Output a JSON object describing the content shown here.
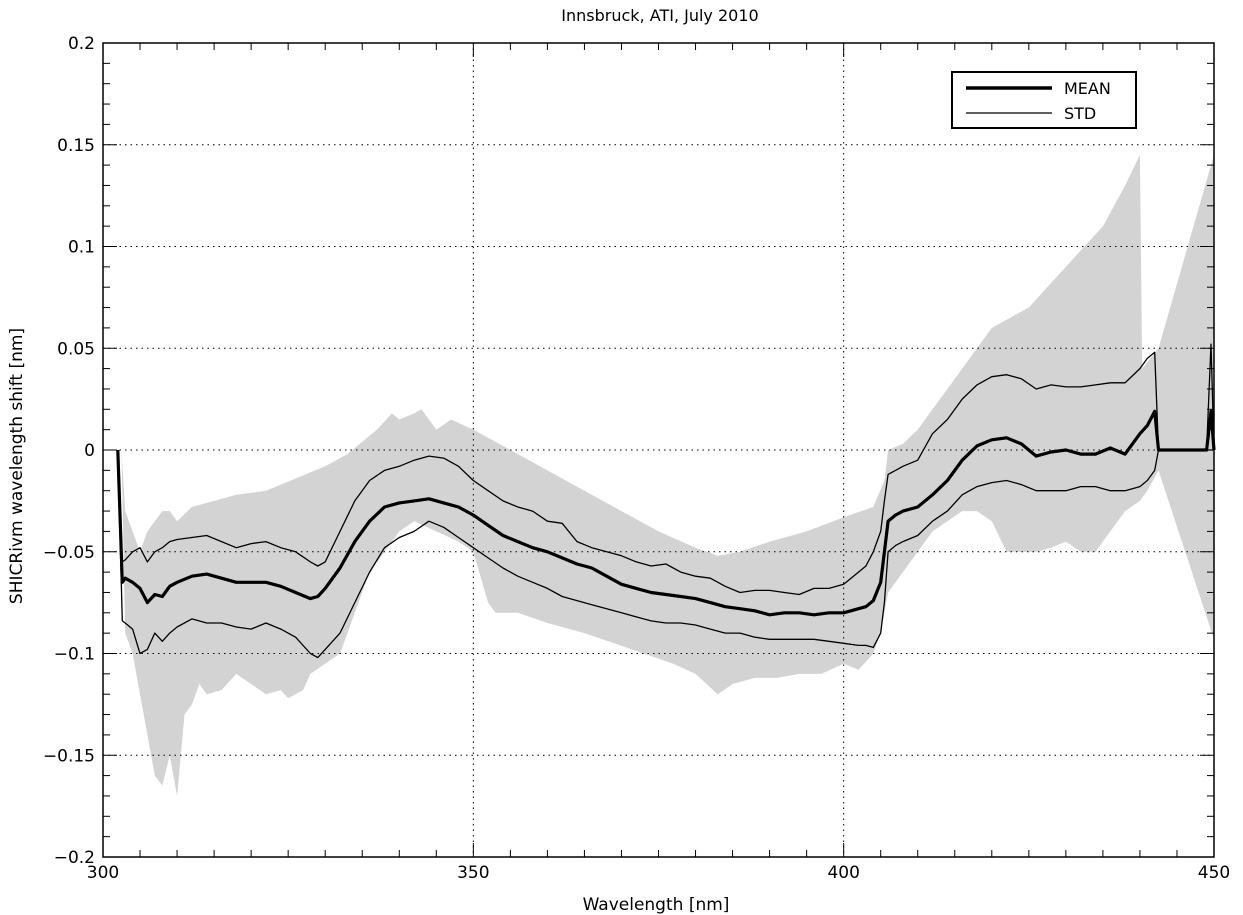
{
  "chart_data": {
    "type": "line",
    "title": "Innsbruck, ATI, July 2010",
    "xlabel": "Wavelength [nm]",
    "ylabel": "SHICRivm wavelength shift [nm]",
    "xlim": [
      300,
      450
    ],
    "ylim": [
      -0.2,
      0.2
    ],
    "xticks": [
      300,
      350,
      400,
      450
    ],
    "yticks": [
      -0.2,
      -0.15,
      -0.1,
      -0.05,
      0,
      0.05,
      0.1,
      0.15,
      0.2
    ],
    "xtick_labels": [
      "300",
      "350",
      "400",
      "450"
    ],
    "ytick_labels": [
      "−0.2",
      "−0.15",
      "−0.1",
      "−0.05",
      "0",
      "0.05",
      "0.1",
      "0.15",
      "0.2"
    ],
    "grid": true,
    "legend_position": "top-right",
    "legend": [
      "MEAN",
      "STD"
    ],
    "colors": {
      "range_fill": "#d3d3d3",
      "lines": "#000000",
      "grid": "#000000"
    },
    "range_band": {
      "upper": [
        [
          302.5,
          0
        ],
        [
          303,
          -0.03
        ],
        [
          304,
          -0.04
        ],
        [
          305,
          -0.05
        ],
        [
          306,
          -0.04
        ],
        [
          307,
          -0.035
        ],
        [
          308,
          -0.03
        ],
        [
          309,
          -0.03
        ],
        [
          310,
          -0.035
        ],
        [
          312,
          -0.028
        ],
        [
          315,
          -0.025
        ],
        [
          318,
          -0.022
        ],
        [
          322,
          -0.02
        ],
        [
          326,
          -0.014
        ],
        [
          330,
          -0.008
        ],
        [
          333,
          -0.002
        ],
        [
          335,
          0.004
        ],
        [
          337,
          0.01
        ],
        [
          339,
          0.018
        ],
        [
          340,
          0.015
        ],
        [
          342,
          0.018
        ],
        [
          343,
          0.02
        ],
        [
          345,
          0.01
        ],
        [
          347,
          0.015
        ],
        [
          350,
          0.01
        ],
        [
          355,
          0.0
        ],
        [
          360,
          -0.01
        ],
        [
          365,
          -0.02
        ],
        [
          370,
          -0.03
        ],
        [
          375,
          -0.04
        ],
        [
          380,
          -0.048
        ],
        [
          383,
          -0.052
        ],
        [
          386,
          -0.05
        ],
        [
          390,
          -0.045
        ],
        [
          395,
          -0.04
        ],
        [
          400,
          -0.033
        ],
        [
          404,
          -0.028
        ],
        [
          405.5,
          -0.015
        ],
        [
          406,
          0.0
        ],
        [
          408,
          0.003
        ],
        [
          410,
          0.01
        ],
        [
          412,
          0.02
        ],
        [
          414,
          0.03
        ],
        [
          416,
          0.04
        ],
        [
          418,
          0.05
        ],
        [
          420,
          0.06
        ],
        [
          425,
          0.07
        ],
        [
          430,
          0.09
        ],
        [
          435,
          0.11
        ],
        [
          438,
          0.13
        ],
        [
          440,
          0.145
        ],
        [
          440.3,
          0.04
        ],
        [
          442.5,
          0.05
        ],
        [
          450,
          0.145
        ]
      ],
      "lower": [
        [
          450,
          -0.093
        ],
        [
          442.5,
          -0.01
        ],
        [
          441,
          -0.02
        ],
        [
          440,
          -0.025
        ],
        [
          438,
          -0.03
        ],
        [
          436,
          -0.04
        ],
        [
          434,
          -0.05
        ],
        [
          432,
          -0.05
        ],
        [
          430,
          -0.045
        ],
        [
          428,
          -0.048
        ],
        [
          426,
          -0.05
        ],
        [
          424,
          -0.05
        ],
        [
          422,
          -0.05
        ],
        [
          420,
          -0.035
        ],
        [
          418,
          -0.03
        ],
        [
          416,
          -0.03
        ],
        [
          414,
          -0.035
        ],
        [
          412,
          -0.04
        ],
        [
          410,
          -0.05
        ],
        [
          408,
          -0.06
        ],
        [
          406,
          -0.07
        ],
        [
          405,
          -0.09
        ],
        [
          404,
          -0.1
        ],
        [
          402,
          -0.108
        ],
        [
          400,
          -0.105
        ],
        [
          397,
          -0.11
        ],
        [
          394,
          -0.11
        ],
        [
          391,
          -0.112
        ],
        [
          388,
          -0.112
        ],
        [
          385,
          -0.115
        ],
        [
          383,
          -0.12
        ],
        [
          380,
          -0.11
        ],
        [
          377,
          -0.105
        ],
        [
          373,
          -0.1
        ],
        [
          369,
          -0.095
        ],
        [
          365,
          -0.09
        ],
        [
          360,
          -0.085
        ],
        [
          356,
          -0.08
        ],
        [
          353,
          -0.08
        ],
        [
          352,
          -0.075
        ],
        [
          350,
          -0.05
        ],
        [
          348,
          -0.045
        ],
        [
          345,
          -0.04
        ],
        [
          342,
          -0.035
        ],
        [
          340,
          -0.04
        ],
        [
          338,
          -0.05
        ],
        [
          336,
          -0.06
        ],
        [
          334,
          -0.08
        ],
        [
          332,
          -0.1
        ],
        [
          330,
          -0.105
        ],
        [
          328,
          -0.11
        ],
        [
          327,
          -0.118
        ],
        [
          325,
          -0.122
        ],
        [
          324,
          -0.118
        ],
        [
          322,
          -0.12
        ],
        [
          320,
          -0.115
        ],
        [
          318,
          -0.11
        ],
        [
          316,
          -0.118
        ],
        [
          314,
          -0.12
        ],
        [
          313,
          -0.115
        ],
        [
          312,
          -0.125
        ],
        [
          311,
          -0.13
        ],
        [
          310,
          -0.17
        ],
        [
          309,
          -0.15
        ],
        [
          308,
          -0.165
        ],
        [
          307,
          -0.16
        ],
        [
          306,
          -0.14
        ],
        [
          305,
          -0.12
        ],
        [
          304,
          -0.1
        ],
        [
          303,
          -0.09
        ],
        [
          302.5,
          0
        ]
      ]
    },
    "series": [
      {
        "name": "MEAN",
        "x": [
          302,
          302.6,
          303,
          304,
          305,
          306,
          307,
          308,
          309,
          310,
          312,
          314,
          316,
          318,
          320,
          322,
          324,
          326,
          328,
          329,
          330,
          332,
          334,
          336,
          338,
          340,
          342,
          344,
          346,
          348,
          350,
          352,
          354,
          356,
          358,
          360,
          362,
          364,
          366,
          368,
          370,
          372,
          374,
          376,
          378,
          380,
          382,
          384,
          386,
          388,
          390,
          392,
          394,
          396,
          398,
          400,
          402,
          403,
          404,
          405,
          405.5,
          406,
          407,
          408,
          410,
          412,
          414,
          416,
          418,
          420,
          422,
          424,
          426,
          428,
          430,
          432,
          434,
          436,
          438,
          440,
          441,
          442,
          442.5,
          443,
          445,
          447,
          449,
          449.6,
          450
        ],
        "y": [
          0,
          -0.065,
          -0.063,
          -0.065,
          -0.068,
          -0.075,
          -0.071,
          -0.072,
          -0.067,
          -0.065,
          -0.062,
          -0.061,
          -0.063,
          -0.065,
          -0.065,
          -0.065,
          -0.067,
          -0.07,
          -0.073,
          -0.072,
          -0.068,
          -0.058,
          -0.045,
          -0.035,
          -0.028,
          -0.026,
          -0.025,
          -0.024,
          -0.026,
          -0.028,
          -0.032,
          -0.037,
          -0.042,
          -0.045,
          -0.048,
          -0.05,
          -0.053,
          -0.056,
          -0.058,
          -0.062,
          -0.066,
          -0.068,
          -0.07,
          -0.071,
          -0.072,
          -0.073,
          -0.075,
          -0.077,
          -0.078,
          -0.079,
          -0.081,
          -0.08,
          -0.08,
          -0.081,
          -0.08,
          -0.08,
          -0.078,
          -0.077,
          -0.074,
          -0.065,
          -0.05,
          -0.035,
          -0.032,
          -0.03,
          -0.028,
          -0.022,
          -0.015,
          -0.005,
          0.002,
          0.005,
          0.006,
          0.003,
          -0.003,
          -0.001,
          0.0,
          -0.002,
          -0.002,
          0.001,
          -0.002,
          0.008,
          0.012,
          0.019,
          0,
          0,
          0,
          0,
          0,
          0.019,
          0
        ]
      },
      {
        "name": "STD",
        "x": [
          302,
          302.6,
          303,
          304,
          305,
          306,
          307,
          308,
          309,
          310,
          312,
          314,
          316,
          318,
          320,
          322,
          324,
          326,
          328,
          329,
          330,
          332,
          334,
          336,
          338,
          340,
          342,
          344,
          346,
          348,
          350,
          352,
          354,
          356,
          358,
          360,
          362,
          364,
          366,
          368,
          370,
          372,
          374,
          376,
          378,
          380,
          382,
          384,
          386,
          388,
          390,
          392,
          394,
          396,
          398,
          400,
          402,
          403,
          404,
          405,
          405.5,
          406,
          407,
          408,
          410,
          412,
          414,
          416,
          418,
          420,
          422,
          424,
          426,
          428,
          430,
          432,
          434,
          436,
          438,
          440,
          441,
          442,
          442.5,
          443,
          445,
          447,
          449,
          449.6,
          450
        ],
        "y": [
          0,
          -0.055,
          -0.054,
          -0.05,
          -0.048,
          -0.055,
          -0.05,
          -0.048,
          -0.045,
          -0.044,
          -0.043,
          -0.042,
          -0.045,
          -0.048,
          -0.046,
          -0.045,
          -0.048,
          -0.05,
          -0.055,
          -0.057,
          -0.055,
          -0.04,
          -0.025,
          -0.015,
          -0.01,
          -0.008,
          -0.005,
          -0.003,
          -0.004,
          -0.008,
          -0.015,
          -0.02,
          -0.025,
          -0.028,
          -0.03,
          -0.035,
          -0.036,
          -0.045,
          -0.048,
          -0.05,
          -0.052,
          -0.055,
          -0.057,
          -0.056,
          -0.06,
          -0.062,
          -0.063,
          -0.067,
          -0.07,
          -0.069,
          -0.069,
          -0.07,
          -0.071,
          -0.068,
          -0.068,
          -0.066,
          -0.06,
          -0.057,
          -0.05,
          -0.04,
          -0.025,
          -0.012,
          -0.01,
          -0.008,
          -0.005,
          0.008,
          0.015,
          0.025,
          0.032,
          0.036,
          0.037,
          0.035,
          0.03,
          0.032,
          0.031,
          0.031,
          0.032,
          0.033,
          0.033,
          0.04,
          0.045,
          0.048,
          0,
          0,
          0,
          0,
          0,
          0.052,
          0
        ]
      },
      {
        "name": "",
        "x": [
          302,
          302.6,
          303,
          304,
          305,
          306,
          307,
          308,
          309,
          310,
          312,
          314,
          316,
          318,
          320,
          322,
          324,
          326,
          328,
          329,
          330,
          332,
          334,
          336,
          338,
          340,
          342,
          344,
          346,
          348,
          350,
          352,
          354,
          356,
          358,
          360,
          362,
          364,
          366,
          368,
          370,
          372,
          374,
          376,
          378,
          380,
          382,
          384,
          386,
          388,
          390,
          392,
          394,
          396,
          398,
          400,
          402,
          403,
          404,
          405,
          405.5,
          406,
          407,
          408,
          410,
          412,
          414,
          416,
          418,
          420,
          422,
          424,
          426,
          428,
          430,
          432,
          434,
          436,
          438,
          440,
          441,
          442,
          442.5,
          443,
          445,
          447,
          449,
          449.6,
          450
        ],
        "y": [
          0,
          -0.084,
          -0.085,
          -0.088,
          -0.1,
          -0.098,
          -0.09,
          -0.094,
          -0.09,
          -0.087,
          -0.083,
          -0.085,
          -0.085,
          -0.087,
          -0.088,
          -0.085,
          -0.088,
          -0.092,
          -0.1,
          -0.102,
          -0.098,
          -0.09,
          -0.075,
          -0.06,
          -0.048,
          -0.043,
          -0.04,
          -0.035,
          -0.038,
          -0.043,
          -0.048,
          -0.053,
          -0.058,
          -0.062,
          -0.065,
          -0.068,
          -0.072,
          -0.074,
          -0.076,
          -0.078,
          -0.08,
          -0.082,
          -0.084,
          -0.085,
          -0.085,
          -0.086,
          -0.088,
          -0.09,
          -0.09,
          -0.092,
          -0.093,
          -0.093,
          -0.093,
          -0.093,
          -0.094,
          -0.095,
          -0.096,
          -0.096,
          -0.097,
          -0.09,
          -0.075,
          -0.05,
          -0.047,
          -0.045,
          -0.042,
          -0.035,
          -0.03,
          -0.022,
          -0.018,
          -0.016,
          -0.015,
          -0.017,
          -0.02,
          -0.02,
          -0.02,
          -0.018,
          -0.018,
          -0.02,
          -0.02,
          -0.018,
          -0.015,
          -0.01,
          0,
          0,
          0,
          0,
          0,
          0,
          0
        ]
      }
    ]
  }
}
